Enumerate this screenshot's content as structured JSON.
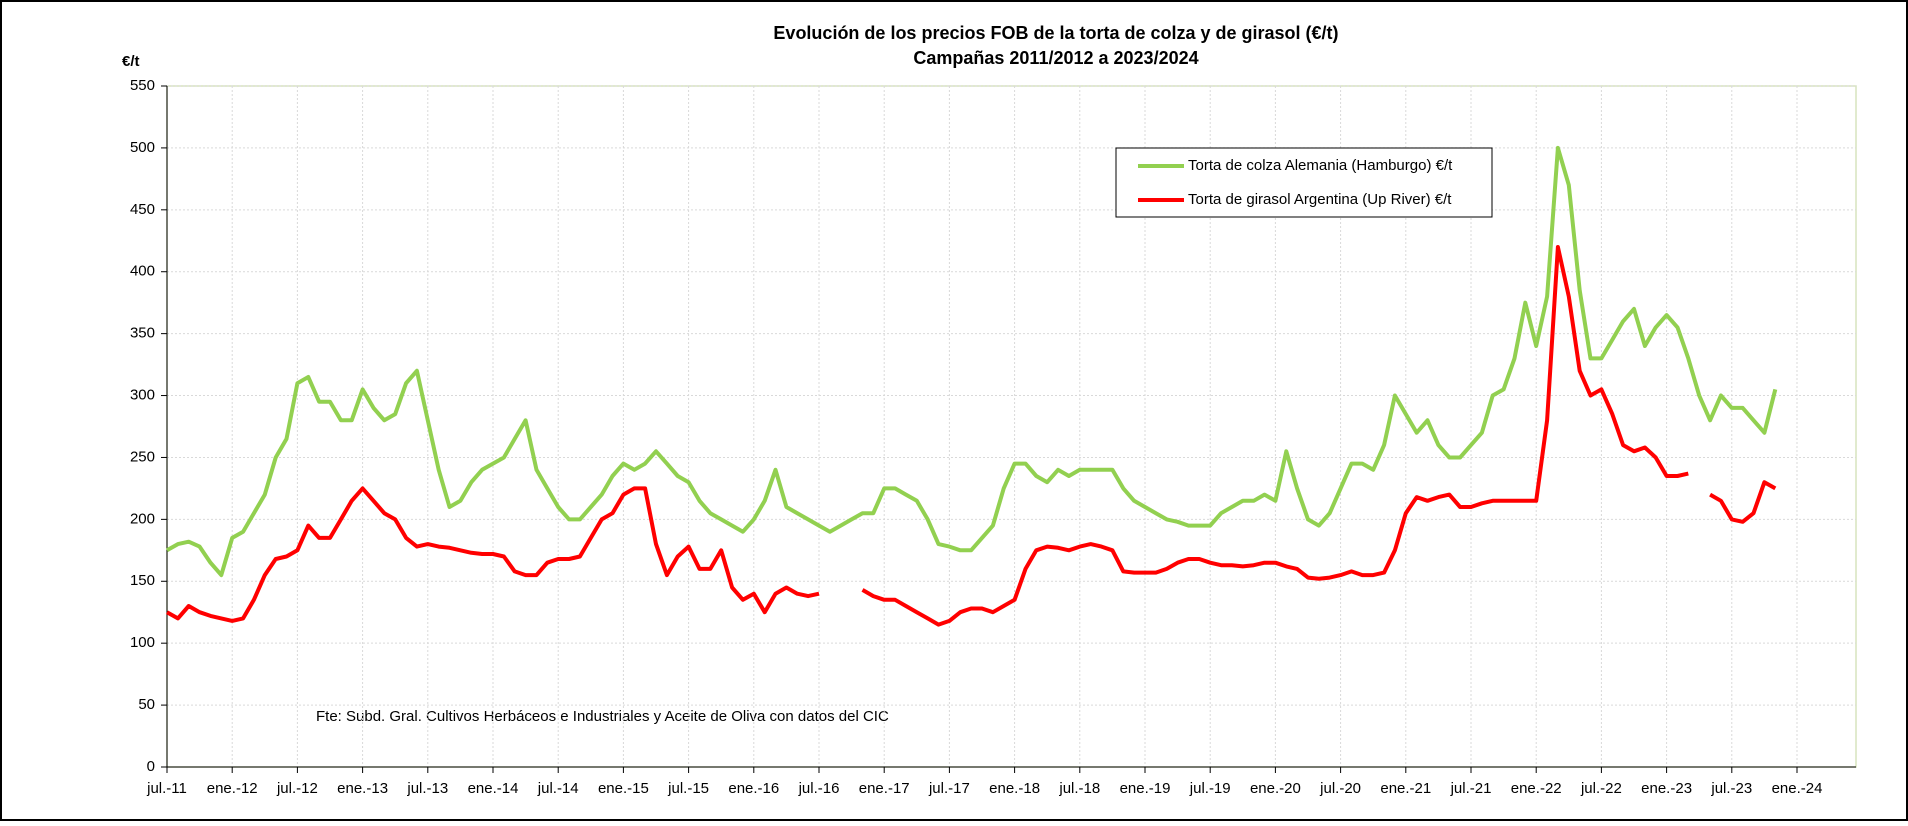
{
  "chart_data": {
    "type": "line",
    "title": "Evolución de los precios FOB de la torta de colza y de girasol (€/t)",
    "subtitle": "Campañas 2011/2012 a 2023/2024",
    "y_label": "€/t",
    "annotation": "Fte: Subd. Gral. Cultivos Herbáceos e Industriales y Aceite de Oliva con datos del CIC",
    "categories": [
      "jul.-11",
      null,
      null,
      null,
      null,
      null,
      "ene.-12",
      null,
      null,
      null,
      null,
      null,
      "jul.-12",
      null,
      null,
      null,
      null,
      null,
      "ene.-13",
      null,
      null,
      null,
      null,
      null,
      "jul.-13",
      null,
      null,
      null,
      null,
      null,
      "ene.-14",
      null,
      null,
      null,
      null,
      null,
      "jul.-14",
      null,
      null,
      null,
      null,
      null,
      "ene.-15",
      null,
      null,
      null,
      null,
      null,
      "jul.-15",
      null,
      null,
      null,
      null,
      null,
      "ene.-16",
      null,
      null,
      null,
      null,
      null,
      "jul.-16",
      null,
      null,
      null,
      null,
      null,
      "ene.-17",
      null,
      null,
      null,
      null,
      null,
      "jul.-17",
      null,
      null,
      null,
      null,
      null,
      "ene.-18",
      null,
      null,
      null,
      null,
      null,
      "jul.-18",
      null,
      null,
      null,
      null,
      null,
      "ene.-19",
      null,
      null,
      null,
      null,
      null,
      "jul.-19",
      null,
      null,
      null,
      null,
      null,
      "ene.-20",
      null,
      null,
      null,
      null,
      null,
      "jul.-20",
      null,
      null,
      null,
      null,
      null,
      "ene.-21",
      null,
      null,
      null,
      null,
      null,
      "jul.-21",
      null,
      null,
      null,
      null,
      null,
      "ene.-22",
      null,
      null,
      null,
      null,
      null,
      "jul.-22",
      null,
      null,
      null,
      null,
      null,
      "ene.-23",
      null,
      null,
      null,
      null,
      null,
      "jul.-23",
      null,
      null,
      null,
      null,
      null,
      "ene.-24"
    ],
    "series": [
      {
        "name": "Torta de colza Alemania (Hamburgo) €/t",
        "color": "#92d050",
        "values": [
          175,
          180,
          182,
          178,
          165,
          155,
          185,
          190,
          205,
          220,
          250,
          265,
          310,
          315,
          295,
          295,
          280,
          280,
          305,
          290,
          280,
          285,
          310,
          320,
          280,
          240,
          210,
          215,
          230,
          240,
          245,
          250,
          265,
          280,
          240,
          225,
          210,
          200,
          200,
          210,
          220,
          235,
          245,
          240,
          245,
          255,
          245,
          235,
          230,
          215,
          205,
          200,
          195,
          190,
          200,
          215,
          240,
          210,
          205,
          200,
          195,
          190,
          195,
          200,
          205,
          205,
          225,
          225,
          220,
          215,
          200,
          180,
          178,
          175,
          175,
          185,
          195,
          225,
          245,
          245,
          235,
          230,
          240,
          235,
          240,
          240,
          240,
          240,
          225,
          215,
          210,
          205,
          200,
          198,
          195,
          195,
          195,
          205,
          210,
          215,
          215,
          220,
          215,
          255,
          225,
          200,
          195,
          205,
          225,
          245,
          245,
          240,
          260,
          300,
          285,
          270,
          280,
          260,
          250,
          250,
          260,
          270,
          300,
          305,
          330,
          375,
          340,
          380,
          500,
          470,
          385,
          330,
          330,
          345,
          360,
          370,
          340,
          355,
          365,
          355,
          330,
          300,
          280,
          300,
          290,
          290,
          280,
          270,
          305,
          null,
          null
        ]
      },
      {
        "name": "Torta de girasol Argentina (Up River) €/t",
        "color": "#ff0000",
        "values": [
          125,
          120,
          130,
          125,
          122,
          120,
          118,
          120,
          135,
          155,
          168,
          170,
          175,
          195,
          185,
          185,
          200,
          215,
          225,
          215,
          205,
          200,
          185,
          178,
          180,
          178,
          177,
          175,
          173,
          172,
          172,
          170,
          158,
          155,
          155,
          165,
          168,
          168,
          170,
          185,
          200,
          205,
          220,
          225,
          225,
          180,
          155,
          170,
          178,
          160,
          160,
          175,
          145,
          135,
          140,
          125,
          140,
          145,
          140,
          138,
          140,
          null,
          null,
          null,
          143,
          138,
          135,
          135,
          130,
          125,
          120,
          115,
          118,
          125,
          128,
          128,
          125,
          130,
          135,
          160,
          175,
          178,
          177,
          175,
          178,
          180,
          178,
          175,
          158,
          157,
          157,
          157,
          160,
          165,
          168,
          168,
          165,
          163,
          163,
          162,
          163,
          165,
          165,
          162,
          160,
          153,
          152,
          153,
          155,
          158,
          155,
          155,
          157,
          175,
          205,
          218,
          215,
          218,
          220,
          210,
          210,
          213,
          215,
          215,
          215,
          215,
          215,
          280,
          420,
          380,
          320,
          300,
          305,
          285,
          260,
          255,
          258,
          250,
          235,
          235,
          237,
          null,
          220,
          215,
          200,
          198,
          205,
          230,
          225,
          null,
          null
        ]
      }
    ],
    "ylim": [
      0,
      550
    ],
    "yticks": [
      0,
      50,
      100,
      150,
      200,
      250,
      300,
      350,
      400,
      450,
      500,
      550
    ],
    "grid": true,
    "legend": "upper right"
  }
}
